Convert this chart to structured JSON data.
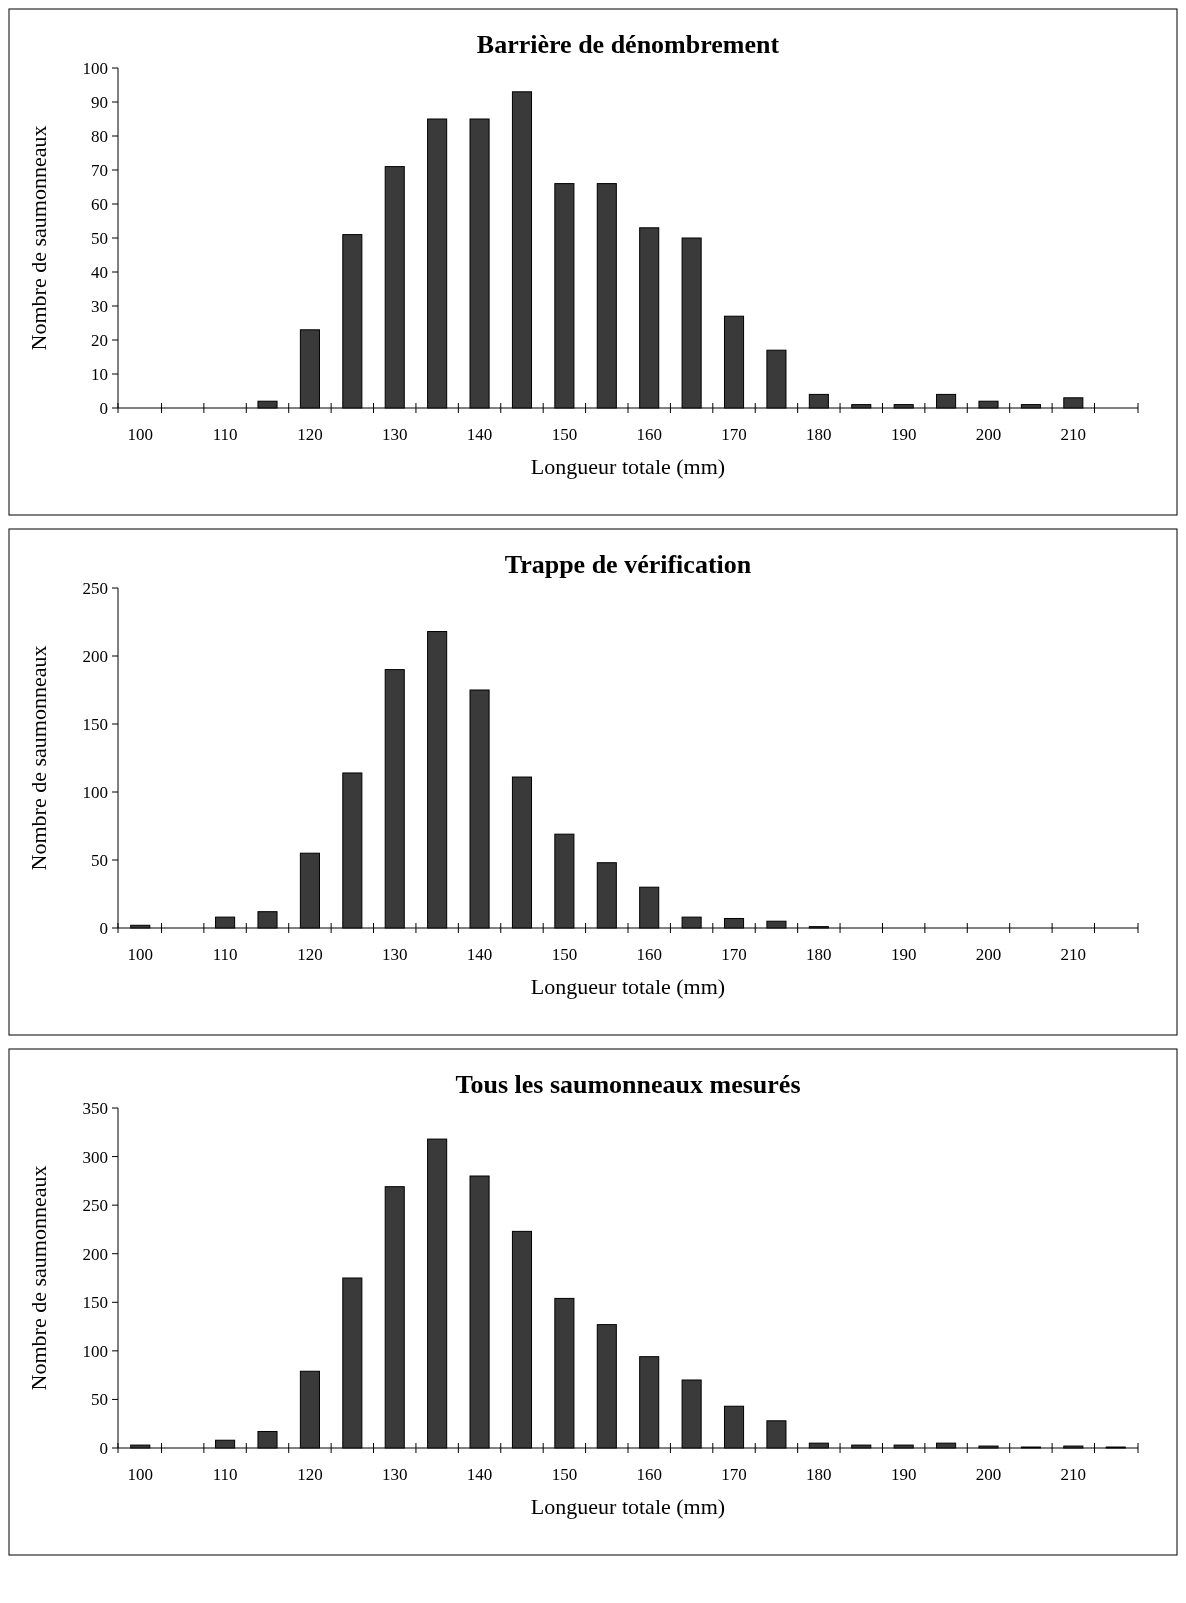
{
  "chart_data": [
    {
      "type": "bar",
      "title": "Barrière de dénombrement",
      "xlabel": "Longueur totale (mm)",
      "ylabel": "Nombre de saumonneaux",
      "categories": [
        "100",
        null,
        "110",
        null,
        "120",
        null,
        "130",
        null,
        "140",
        null,
        "150",
        null,
        "160",
        null,
        "170",
        null,
        "180",
        null,
        "190",
        null,
        "200",
        null,
        "210",
        null
      ],
      "values": [
        0,
        0,
        0,
        2,
        23,
        51,
        71,
        85,
        85,
        93,
        66,
        66,
        53,
        50,
        27,
        17,
        4,
        1,
        1,
        4,
        2,
        1,
        3,
        0
      ],
      "color": "#3a3a3a",
      "ylim": [
        0,
        100
      ],
      "yticks": [
        0,
        10,
        20,
        30,
        40,
        50,
        60,
        70,
        80,
        90,
        100
      ]
    },
    {
      "type": "bar",
      "title": "Trappe de vérification",
      "xlabel": "Longueur totale (mm)",
      "ylabel": "Nombre de saumonneaux",
      "categories": [
        "100",
        null,
        "110",
        null,
        "120",
        null,
        "130",
        null,
        "140",
        null,
        "150",
        null,
        "160",
        null,
        "170",
        null,
        "180",
        null,
        "190",
        null,
        "200",
        null,
        "210",
        null
      ],
      "values": [
        2,
        0,
        8,
        12,
        55,
        114,
        190,
        218,
        175,
        111,
        69,
        48,
        30,
        8,
        7,
        5,
        1,
        0,
        0,
        0,
        0,
        0,
        0,
        0
      ],
      "color": "#3a3a3a",
      "ylim": [
        0,
        250
      ],
      "yticks": [
        0,
        50,
        100,
        150,
        200,
        250
      ]
    },
    {
      "type": "bar",
      "title": "Tous les saumonneaux mesurés",
      "xlabel": "Longueur totale (mm)",
      "ylabel": "Nombre de saumonneaux",
      "categories": [
        "100",
        null,
        "110",
        null,
        "120",
        null,
        "130",
        null,
        "140",
        null,
        "150",
        null,
        "160",
        null,
        "170",
        null,
        "180",
        null,
        "190",
        null,
        "200",
        null,
        "210",
        null
      ],
      "values": [
        3,
        0,
        8,
        17,
        79,
        175,
        269,
        318,
        280,
        223,
        154,
        127,
        94,
        70,
        43,
        28,
        5,
        3,
        3,
        5,
        2,
        1,
        2,
        1
      ],
      "color": "#3a3a3a",
      "ylim": [
        0,
        350
      ],
      "yticks": [
        0,
        50,
        100,
        150,
        200,
        250,
        300,
        350
      ]
    }
  ]
}
